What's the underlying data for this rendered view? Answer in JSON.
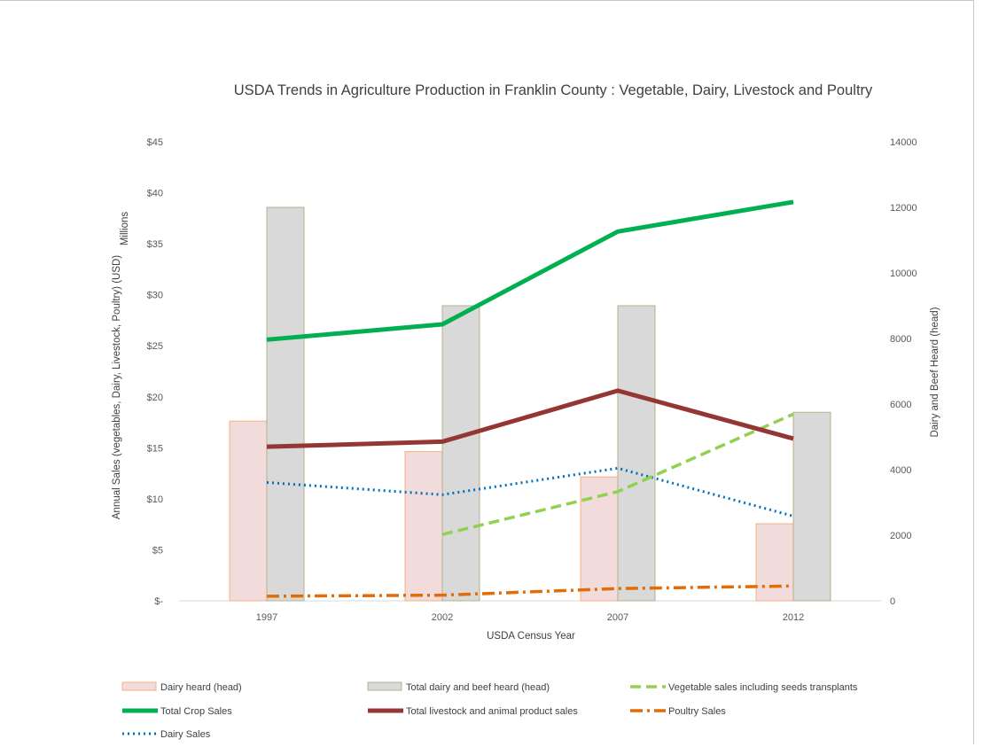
{
  "chart_data": {
    "type": "bar",
    "title": "USDA Trends in Agriculture Production in Franklin County : Vegetable, Dairy, Livestock and Poultry",
    "xlabel": "USDA Census Year",
    "ylabel_left": "Annual Sales (vegetables, Dairy, Livestock, Poultry) (USD)",
    "ylabel_left_units": "Millions",
    "ylabel_right": "Dairy and Beef Heard  (head)",
    "categories": [
      "1997",
      "2002",
      "2007",
      "2012"
    ],
    "ylim_left": [
      0,
      45
    ],
    "ylim_right": [
      0,
      14000
    ],
    "left_tick_labels": [
      "$-",
      "$5",
      "$10",
      "$15",
      "$20",
      "$25",
      "$30",
      "$35",
      "$40",
      "$45"
    ],
    "right_tick_labels": [
      "0",
      "2000",
      "4000",
      "6000",
      "8000",
      "10000",
      "12000",
      "14000"
    ],
    "gridlines": false,
    "legend_position": "bottom",
    "series": [
      {
        "name": "Dairy heard (head)",
        "kind": "bar",
        "axis": "right",
        "color": "#f2dcdb",
        "stroke": "#f4b183",
        "values": [
          5480,
          4550,
          3780,
          2350
        ]
      },
      {
        "name": "Total dairy and beef heard (head)",
        "kind": "bar",
        "axis": "right",
        "color": "#d9d9d9",
        "stroke": "#b8b08c",
        "values": [
          12000,
          9000,
          9000,
          5750
        ]
      },
      {
        "name": "Vegetable sales including seeds transplants",
        "kind": "line",
        "axis": "left",
        "color": "#92d050",
        "dash": "dashed",
        "values": [
          null,
          6.5,
          10.7,
          18.3
        ]
      },
      {
        "name": "Total Crop Sales",
        "kind": "line",
        "axis": "left",
        "color": "#00b050",
        "dash": "solid",
        "values": [
          25.6,
          27.1,
          36.2,
          39.1
        ]
      },
      {
        "name": "Total livestock and animal product sales",
        "kind": "line",
        "axis": "left",
        "color": "#943634",
        "dash": "solid",
        "values": [
          15.1,
          15.6,
          20.6,
          15.9
        ]
      },
      {
        "name": "Poultry Sales",
        "kind": "line",
        "axis": "left",
        "color": "#e36c09",
        "dash": "dashdot",
        "values": [
          0.45,
          0.55,
          1.2,
          1.45
        ]
      },
      {
        "name": "Dairy Sales",
        "kind": "line",
        "axis": "left",
        "color": "#0070c0",
        "dash": "dotted",
        "values": [
          11.6,
          10.4,
          13.0,
          8.3
        ]
      }
    ]
  }
}
